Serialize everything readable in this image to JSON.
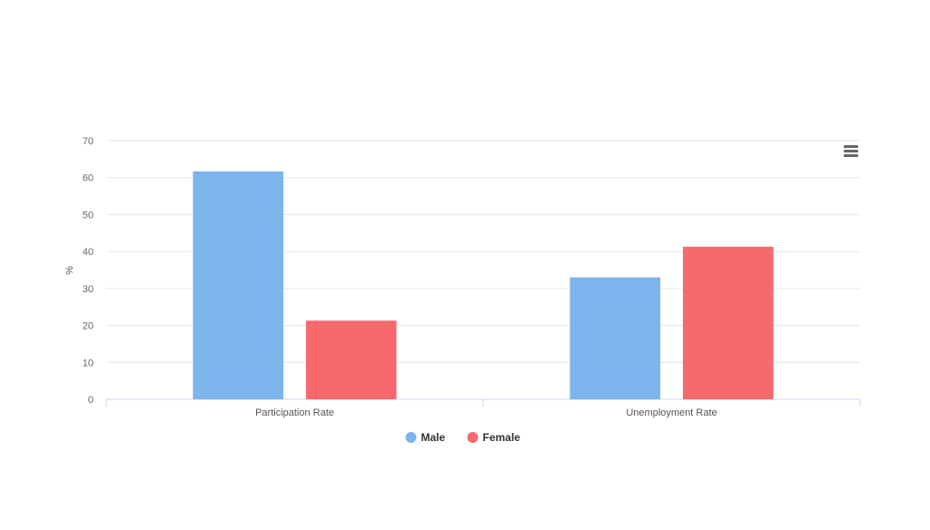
{
  "chart_data": {
    "type": "bar",
    "title": "",
    "xlabel": "",
    "ylabel": "%",
    "categories": [
      "Participation Rate",
      "Unemployment Rate"
    ],
    "series": [
      {
        "name": "Male",
        "color": "#7cb5ec",
        "values": [
          61.7,
          33.0
        ]
      },
      {
        "name": "Female",
        "color": "#f7696d",
        "values": [
          21.3,
          41.3
        ]
      }
    ],
    "ylim": [
      0,
      70
    ],
    "yticks": [
      0,
      10,
      20,
      30,
      40,
      50,
      60,
      70
    ],
    "grid": true,
    "legend_position": "bottom-center"
  },
  "menu": {
    "icon": "hamburger-menu-icon"
  }
}
